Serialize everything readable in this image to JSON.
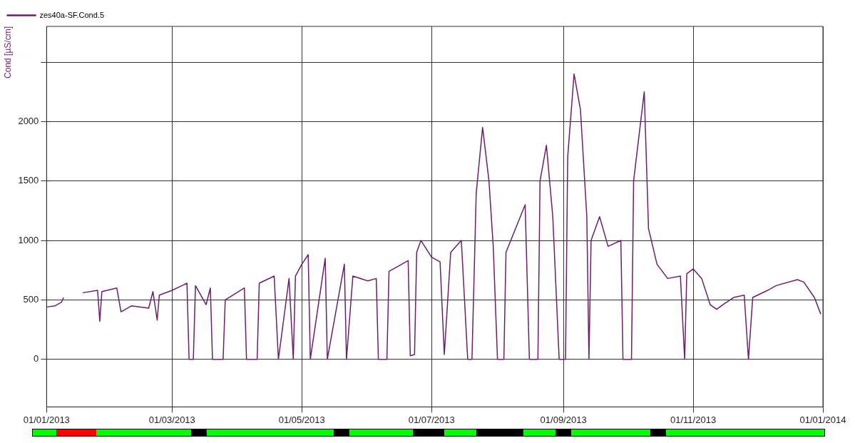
{
  "chart_data": {
    "type": "line",
    "ylabel": "Cond [µS/cm]",
    "legend": "top left",
    "grid": true,
    "line_style": "solid",
    "marker": "none",
    "xlim": [
      "2013-01-01",
      "2014-01-01"
    ],
    "xticks": [
      {
        "value": "2013-01-01",
        "label": "01/01/2013"
      },
      {
        "value": "2013-03-01",
        "label": "01/03/2013"
      },
      {
        "value": "2013-05-01",
        "label": "01/05/2013"
      },
      {
        "value": "2013-07-01",
        "label": "01/07/2013"
      },
      {
        "value": "2013-09-01",
        "label": "01/09/2013"
      },
      {
        "value": "2013-11-01",
        "label": "01/11/2013"
      },
      {
        "value": "2014-01-01",
        "label": "01/01/2014"
      }
    ],
    "ylim": [
      -400,
      2800
    ],
    "yticks": [
      0,
      500,
      1000,
      1500,
      2000,
      {
        "value": 2500,
        "label": null
      }
    ],
    "x": [
      "2013-01-01",
      "2013-01-05",
      "2013-01-08",
      "2013-01-09",
      "2013-01-12",
      "2013-01-18",
      "2013-01-25",
      "2013-01-26",
      "2013-01-27",
      "2013-02-03",
      "2013-02-05",
      "2013-02-10",
      "2013-02-18",
      "2013-02-20",
      "2013-02-22",
      "2013-02-23",
      "2013-03-01",
      "2013-03-08",
      "2013-03-09",
      "2013-03-11",
      "2013-03-12",
      "2013-03-17",
      "2013-03-19",
      "2013-03-20",
      "2013-03-25",
      "2013-03-26",
      "2013-04-04",
      "2013-04-05",
      "2013-04-10",
      "2013-04-11",
      "2013-04-18",
      "2013-04-20",
      "2013-04-25",
      "2013-04-27",
      "2013-04-28",
      "2013-05-01",
      "2013-05-04",
      "2013-05-05",
      "2013-05-12",
      "2013-05-13",
      "2013-05-21",
      "2013-05-22",
      "2013-05-25",
      "2013-06-01",
      "2013-06-05",
      "2013-06-06",
      "2013-06-10",
      "2013-06-11",
      "2013-06-20",
      "2013-06-21",
      "2013-06-23",
      "2013-06-24",
      "2013-06-26",
      "2013-07-01",
      "2013-07-05",
      "2013-07-07",
      "2013-07-10",
      "2013-07-15",
      "2013-07-18",
      "2013-07-20",
      "2013-07-22",
      "2013-07-25",
      "2013-07-28",
      "2013-07-30",
      "2013-08-01",
      "2013-08-04",
      "2013-08-05",
      "2013-08-14",
      "2013-08-16",
      "2013-08-20",
      "2013-08-21",
      "2013-08-24",
      "2013-08-27",
      "2013-08-30",
      "2013-09-02",
      "2013-09-03",
      "2013-09-06",
      "2013-09-09",
      "2013-09-12",
      "2013-09-13",
      "2013-09-14",
      "2013-09-18",
      "2013-09-22",
      "2013-09-28",
      "2013-09-29",
      "2013-10-03",
      "2013-10-04",
      "2013-10-09",
      "2013-10-11",
      "2013-10-15",
      "2013-10-20",
      "2013-10-26",
      "2013-10-28",
      "2013-10-29",
      "2013-11-01",
      "2013-11-05",
      "2013-11-09",
      "2013-11-12",
      "2013-11-15",
      "2013-11-20",
      "2013-11-25",
      "2013-11-27",
      "2013-11-29",
      "2013-12-06",
      "2013-12-10",
      "2013-12-20",
      "2013-12-23",
      "2013-12-28",
      "2013-12-31"
    ],
    "series": [
      {
        "name": "zes40a-SF.Cond.5",
        "color": "#6b1f6b",
        "values": [
          440,
          450,
          480,
          520,
          null,
          560,
          580,
          320,
          570,
          600,
          400,
          450,
          430,
          570,
          330,
          540,
          580,
          640,
          0,
          0,
          620,
          460,
          600,
          0,
          0,
          500,
          600,
          0,
          0,
          640,
          700,
          0,
          680,
          0,
          700,
          800,
          880,
          0,
          850,
          0,
          800,
          0,
          700,
          660,
          680,
          0,
          0,
          740,
          830,
          30,
          40,
          900,
          1000,
          860,
          820,
          40,
          900,
          1000,
          0,
          0,
          1400,
          1950,
          1500,
          950,
          0,
          0,
          900,
          1300,
          0,
          0,
          1500,
          1800,
          1200,
          0,
          0,
          1700,
          2400,
          2100,
          1200,
          0,
          1000,
          1200,
          950,
          1000,
          0,
          0,
          1500,
          2250,
          1100,
          800,
          680,
          700,
          0,
          720,
          760,
          680,
          460,
          420,
          460,
          520,
          540,
          0,
          520,
          580,
          620,
          670,
          650,
          520,
          380
        ]
      }
    ]
  }
}
